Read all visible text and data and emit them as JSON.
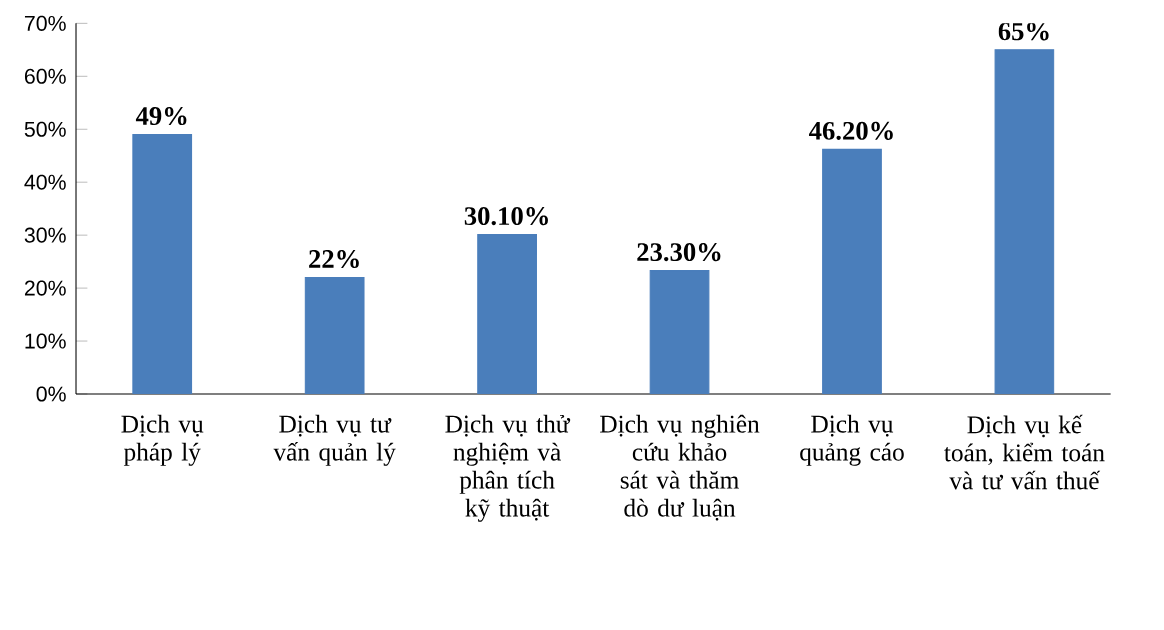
{
  "chart_data": {
    "type": "bar",
    "categories": [
      "Dịch vụ pháp lý",
      "Dịch vụ tư vấn quản lý",
      "Dịch vụ thử nghiệm và phân tích kỹ thuật",
      "Dịch vụ nghiên cứu khảo sát và thăm dò dư luận",
      "Dịch vụ quảng cáo",
      "Dịch vụ kế toán, kiểm toán và tư vấn thuế"
    ],
    "values": [
      49,
      22,
      30.1,
      23.3,
      46.2,
      65
    ],
    "value_labels": [
      "49%",
      "22%",
      "30.10%",
      "23.30%",
      "46.20%",
      "65%"
    ],
    "color": "#4a7ebb",
    "ylim": [
      0,
      70
    ],
    "yticks": [
      {
        "value": 0,
        "label": "0%"
      },
      {
        "value": 10,
        "label": "10%"
      },
      {
        "value": 20,
        "label": "20%"
      },
      {
        "value": 30,
        "label": "30%"
      },
      {
        "value": 40,
        "label": "40%"
      },
      {
        "value": 50,
        "label": "50%"
      },
      {
        "value": 60,
        "label": "60%"
      },
      {
        "value": 70,
        "label": "70%"
      }
    ],
    "grid": false
  }
}
